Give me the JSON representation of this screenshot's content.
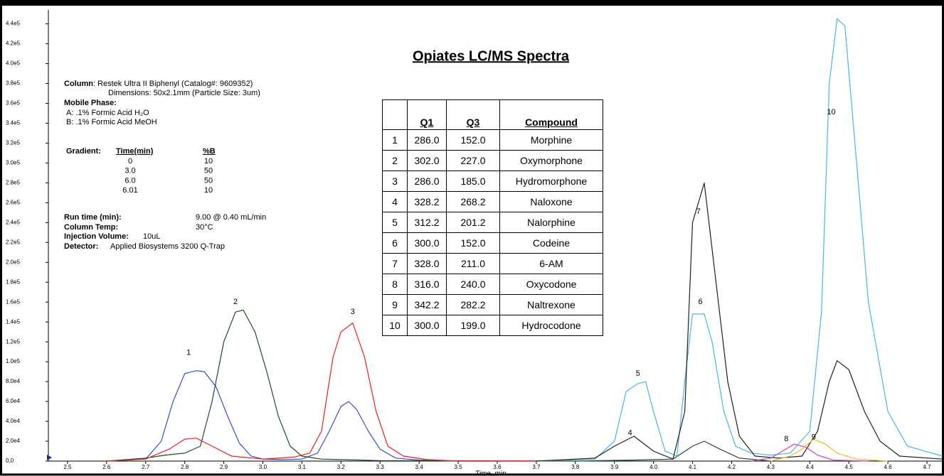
{
  "chart_data": {
    "type": "line",
    "title": "Opiates LC/MS Spectra",
    "xlabel": "Time, min",
    "xlim": [
      2.451,
      4.74
    ],
    "ylim": [
      0,
      454000
    ],
    "xticks": [
      2.5,
      2.6,
      2.7,
      2.8,
      2.9,
      {
        "value": 3,
        "label": "3.0"
      },
      3.1,
      3.2,
      3.3,
      3.4,
      3.5,
      3.6,
      3.7,
      3.8,
      3.9,
      {
        "value": 4,
        "label": "4.0"
      },
      4.1,
      4.2,
      4.3,
      4.4,
      4.5,
      4.6,
      4.7
    ],
    "yticks": [
      {
        "value": 0,
        "label": "0.0"
      },
      {
        "value": 20000,
        "label": "2.0e4"
      },
      {
        "value": 40000,
        "label": "4.0e4"
      },
      {
        "value": 60000,
        "label": "6.0e4"
      },
      {
        "value": 80000,
        "label": "8.0e4"
      },
      {
        "value": 100000,
        "label": "1.0e5"
      },
      {
        "value": 120000,
        "label": "1.2e5"
      },
      {
        "value": 140000,
        "label": "1.4e5"
      },
      {
        "value": 160000,
        "label": "1.6e5"
      },
      {
        "value": 180000,
        "label": "1.8e5"
      },
      {
        "value": 200000,
        "label": "2.0e5"
      },
      {
        "value": 220000,
        "label": "2.2e5"
      },
      {
        "value": 240000,
        "label": "2.4e5"
      },
      {
        "value": 260000,
        "label": "2.6e5"
      },
      {
        "value": 280000,
        "label": "2.8e5"
      },
      {
        "value": 300000,
        "label": "3.0e5"
      },
      {
        "value": 320000,
        "label": "3.2e5"
      },
      {
        "value": 340000,
        "label": "3.4e5"
      },
      {
        "value": 360000,
        "label": "3.6e5"
      },
      {
        "value": 380000,
        "label": "3.8e5"
      },
      {
        "value": 400000,
        "label": "4.0e5"
      },
      {
        "value": 420000,
        "label": "4.2e5"
      },
      {
        "value": 440000,
        "label": "4.4e5"
      }
    ],
    "series": [
      {
        "color": "#3b4cc0",
        "x": [
          2.6,
          2.7,
          2.74,
          2.77,
          2.8,
          2.83,
          2.85,
          2.88,
          2.91,
          2.94,
          2.97,
          3.0,
          3.05,
          3.1,
          3.14,
          3.17,
          3.2,
          3.22,
          3.24,
          3.27,
          3.3,
          3.34,
          3.4,
          3.5,
          3.7
        ],
        "values": [
          0,
          2000,
          20000,
          60000,
          88000,
          91000,
          90000,
          75000,
          45000,
          18000,
          5000,
          2000,
          1500,
          2000,
          8000,
          30000,
          55000,
          60000,
          52000,
          30000,
          12000,
          3000,
          1000,
          0,
          0
        ]
      },
      {
        "color": "#1f4a1f",
        "x": [
          2.6,
          2.7,
          2.75,
          2.8,
          2.84,
          2.87,
          2.9,
          2.93,
          2.95,
          2.98,
          3.01,
          3.04,
          3.07,
          3.1,
          3.15,
          3.3,
          3.8,
          3.95,
          4.05,
          4.1,
          4.13,
          4.17,
          4.22,
          4.3
        ],
        "values": [
          0,
          3000,
          6000,
          8000,
          15000,
          60000,
          120000,
          150000,
          152000,
          130000,
          90000,
          45000,
          15000,
          5000,
          2000,
          500,
          0,
          1000,
          2000,
          15000,
          20000,
          12000,
          3000,
          0
        ]
      },
      {
        "color": "#e02020",
        "x": [
          2.6,
          2.7,
          2.76,
          2.8,
          2.83,
          2.87,
          2.92,
          3.0,
          3.08,
          3.12,
          3.15,
          3.18,
          3.2,
          3.23,
          3.26,
          3.29,
          3.32,
          3.36,
          3.42,
          3.5,
          3.7
        ],
        "values": [
          0,
          2000,
          12000,
          22000,
          23000,
          15000,
          5000,
          2000,
          4000,
          8000,
          30000,
          105000,
          130000,
          139000,
          105000,
          50000,
          15000,
          5000,
          1500,
          0,
          0
        ]
      },
      {
        "color": "#4db3e0",
        "x": [
          3.7,
          3.85,
          3.9,
          3.93,
          3.96,
          3.98,
          4.0,
          4.03,
          4.06,
          4.08,
          4.1,
          4.13,
          4.15,
          4.18,
          4.21,
          4.25,
          4.3,
          4.35,
          4.4,
          4.43,
          4.45,
          4.47,
          4.49,
          4.52,
          4.55,
          4.6,
          4.65,
          4.74
        ],
        "values": [
          0,
          2000,
          20000,
          70000,
          78000,
          80000,
          50000,
          10000,
          5000,
          80000,
          148000,
          148000,
          120000,
          50000,
          15000,
          8000,
          6000,
          8000,
          30000,
          150000,
          380000,
          445000,
          438000,
          300000,
          160000,
          50000,
          15000,
          5000
        ]
      },
      {
        "color": "#202020",
        "x": [
          3.7,
          3.85,
          3.9,
          3.95,
          4.0,
          4.05,
          4.08,
          4.1,
          4.13,
          4.16,
          4.19,
          4.22,
          4.26,
          4.32,
          4.38,
          4.42,
          4.45,
          4.47,
          4.5,
          4.54,
          4.58,
          4.63,
          4.74
        ],
        "values": [
          0,
          3000,
          15000,
          25000,
          10000,
          2000,
          50000,
          240000,
          280000,
          180000,
          80000,
          25000,
          5000,
          3000,
          5000,
          30000,
          80000,
          101000,
          92000,
          50000,
          20000,
          5000,
          2000
        ]
      },
      {
        "color": "#d040c0",
        "x": [
          4.25,
          4.3,
          4.33,
          4.36,
          4.39,
          4.42,
          4.46,
          4.55
        ],
        "values": [
          0,
          3000,
          10000,
          17000,
          14000,
          6000,
          1000,
          0
        ]
      },
      {
        "color": "#e0c020",
        "x": [
          4.3,
          4.35,
          4.38,
          4.41,
          4.44,
          4.47,
          4.52,
          4.6
        ],
        "values": [
          0,
          5000,
          12000,
          22000,
          17000,
          8000,
          2000,
          0
        ]
      }
    ],
    "annotations": [
      {
        "text": "1",
        "x": 2.81,
        "y": 109000
      },
      {
        "text": "2",
        "x": 2.93,
        "y": 160000
      },
      {
        "text": "3",
        "x": 3.23,
        "y": 150000
      },
      {
        "text": "4",
        "x": 3.94,
        "y": 28000
      },
      {
        "text": "5",
        "x": 3.96,
        "y": 88000
      },
      {
        "text": "6",
        "x": 4.12,
        "y": 160000
      },
      {
        "text": "7",
        "x": 4.115,
        "y": 251000
      },
      {
        "text": "8",
        "x": 4.34,
        "y": 22000
      },
      {
        "text": "9",
        "x": 4.41,
        "y": 24000
      },
      {
        "text": "10",
        "x": 4.455,
        "y": 351000
      }
    ]
  },
  "method": {
    "column_label": "Column",
    "column_value": ": Restek Ultra II Biphenyl (Catalog#:  9609352)",
    "dimensions": "Dimensions: 50x2.1mm (Particle Size: 3um)",
    "mobile_phase_label": "Mobile Phase:",
    "phase_a": "A: .1% Formic Acid H₂O",
    "phase_b": "B: .1% Formic Acid MeOH",
    "gradient_label": "Gradient:",
    "gradient_headers": [
      "Time(min)",
      "%B"
    ],
    "gradient_rows": [
      [
        "0",
        "10"
      ],
      [
        "3.0",
        "50"
      ],
      [
        "6.0",
        "50"
      ],
      [
        "6.01",
        "10"
      ]
    ],
    "run_time_label": "Run time (min):",
    "run_time_value": "9.00 @ 0.40 mL/min",
    "column_temp_label": "Column Temp:",
    "column_temp_value": "30°C",
    "injection_label": "Injection Volume:",
    "injection_value": "10uL",
    "detector_label": "Detector:",
    "detector_value": "Applied Biosystems 3200 Q-Trap"
  },
  "table": {
    "headers": [
      "Q1",
      "Q3",
      "Compound"
    ],
    "rows": [
      [
        "1",
        "286.0",
        "152.0",
        "Morphine"
      ],
      [
        "2",
        "302.0",
        "227.0",
        "Oxymorphone"
      ],
      [
        "3",
        "286.0",
        "185.0",
        "Hydromorphone"
      ],
      [
        "4",
        "328.2",
        "268.2",
        "Naloxone"
      ],
      [
        "5",
        "312.2",
        "201.2",
        "Nalorphine"
      ],
      [
        "6",
        "300.0",
        "152.0",
        "Codeine"
      ],
      [
        "7",
        "328.0",
        "211.0",
        "6-AM"
      ],
      [
        "8",
        "316.0",
        "240.0",
        "Oxycodone"
      ],
      [
        "9",
        "342.2",
        "282.2",
        "Naltrexone"
      ],
      [
        "10",
        "300.0",
        "199.0",
        "Hydrocodone"
      ]
    ]
  }
}
